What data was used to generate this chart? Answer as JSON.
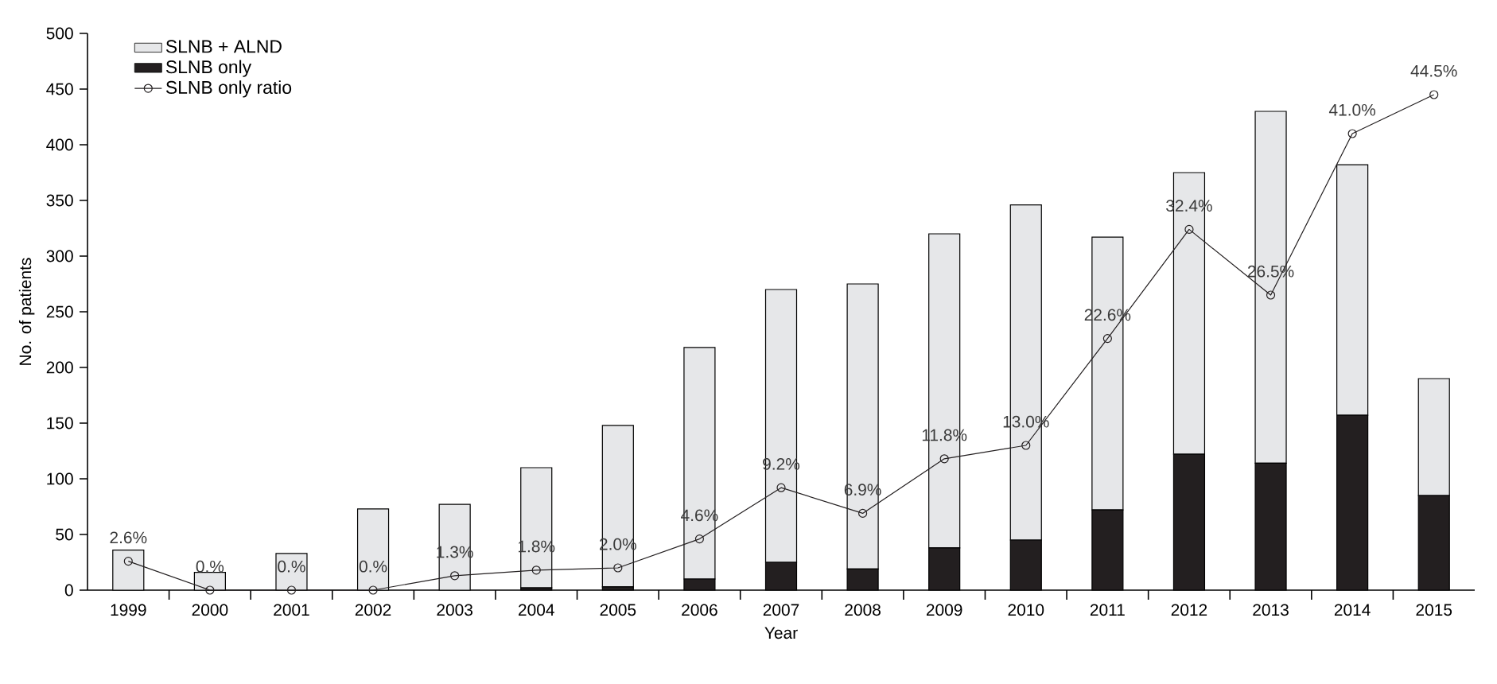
{
  "chart_data": {
    "type": "bar",
    "stacked": true,
    "xlabel": "Year",
    "ylabel": "No. of patients",
    "legend": "top left",
    "grid": false,
    "categories": [
      "1999",
      "2000",
      "2001",
      "2002",
      "2003",
      "2004",
      "2005",
      "2006",
      "2007",
      "2008",
      "2009",
      "2010",
      "2011",
      "2012",
      "2013",
      "2014",
      "2015"
    ],
    "ylim": [
      0,
      500
    ],
    "yticks": [
      0,
      50,
      100,
      150,
      200,
      250,
      300,
      350,
      400,
      450,
      500
    ],
    "y2lim": [
      0,
      50
    ],
    "series": [
      {
        "name": "SLNB only",
        "color": "#231f20",
        "values": [
          null,
          0,
          0,
          0,
          null,
          2,
          3,
          10,
          25,
          19,
          38,
          45,
          72,
          122,
          114,
          157,
          85
        ]
      },
      {
        "name": "SLNB + ALND",
        "color": "#e6e7e9",
        "values": [
          36,
          16,
          33,
          73,
          77,
          108,
          145,
          208,
          245,
          256,
          282,
          301,
          245,
          253,
          316,
          225,
          105
        ]
      },
      {
        "name": "SLNB only ratio",
        "type": "line",
        "axis": "y2",
        "color": "#231f20",
        "marker": "circle",
        "line_style": "solid",
        "values": [
          2.6,
          0,
          0,
          0,
          1.3,
          1.8,
          2.0,
          4.6,
          9.2,
          6.9,
          11.8,
          13.0,
          22.6,
          32.4,
          26.5,
          41.0,
          44.5
        ],
        "value_labels": [
          "2.6%",
          "0.%",
          "0.%",
          "0.%",
          "1.3%",
          "1.8%",
          "2.0%",
          "4.6%",
          "9.2%",
          "6.9%",
          "11.8%",
          "13.0%",
          "22.6%",
          "32.4%",
          "26.5%",
          "41.0%",
          "44.5%"
        ]
      }
    ]
  }
}
